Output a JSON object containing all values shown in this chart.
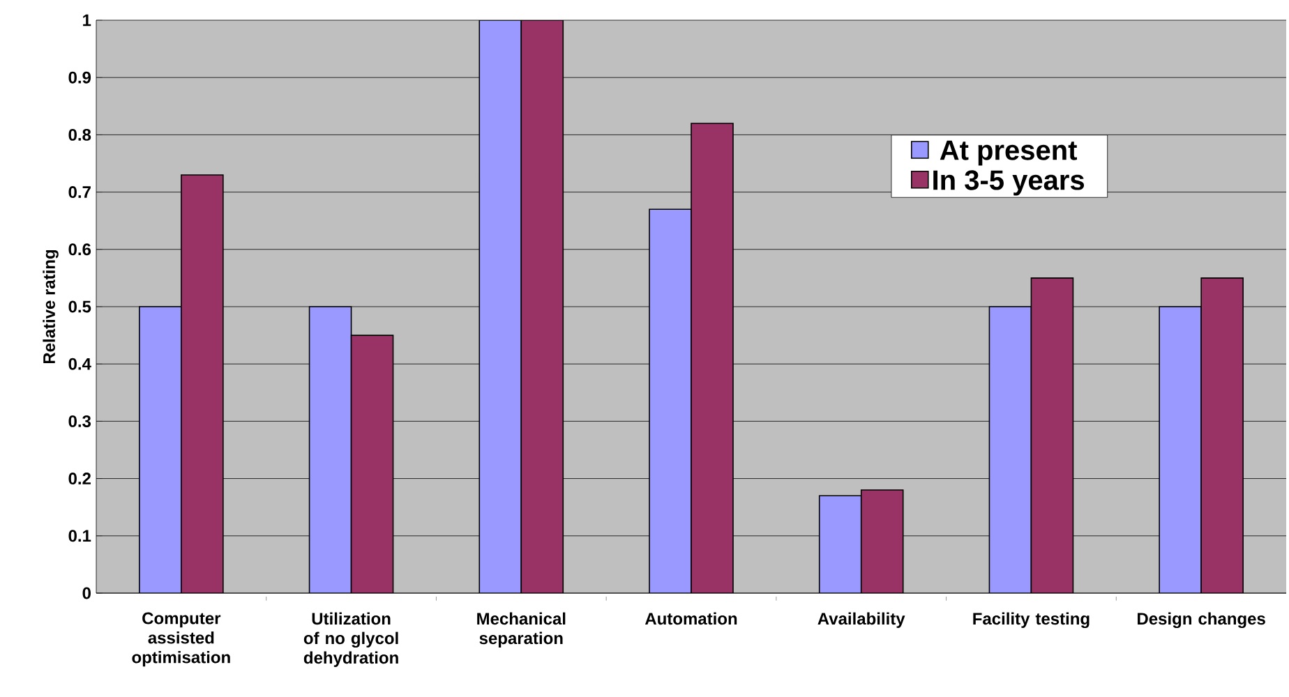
{
  "chart_data": {
    "type": "bar",
    "ylabel": "Relative rating",
    "categories": [
      "Computer assisted optimisation",
      "Utilization of no glycol dehydration",
      "Mechanical separation",
      "Automation",
      "Availability",
      "Facility testing",
      "Design changes"
    ],
    "series": [
      {
        "name": "At present",
        "color": "#9999ff",
        "values": [
          0.5,
          0.5,
          1,
          0.67,
          0.17,
          0.5,
          0.5
        ]
      },
      {
        "name": "In 3-5 years",
        "color": "#993366",
        "values": [
          0.73,
          0.45,
          1,
          0.82,
          0.18,
          0.55,
          0.55
        ]
      }
    ],
    "ylim": [
      0,
      1
    ],
    "yticks": [
      0,
      0.1,
      0.2,
      0.3,
      0.4,
      0.5,
      0.6,
      0.7,
      0.8,
      0.9,
      1
    ],
    "grid": "y",
    "legend": "top right"
  }
}
